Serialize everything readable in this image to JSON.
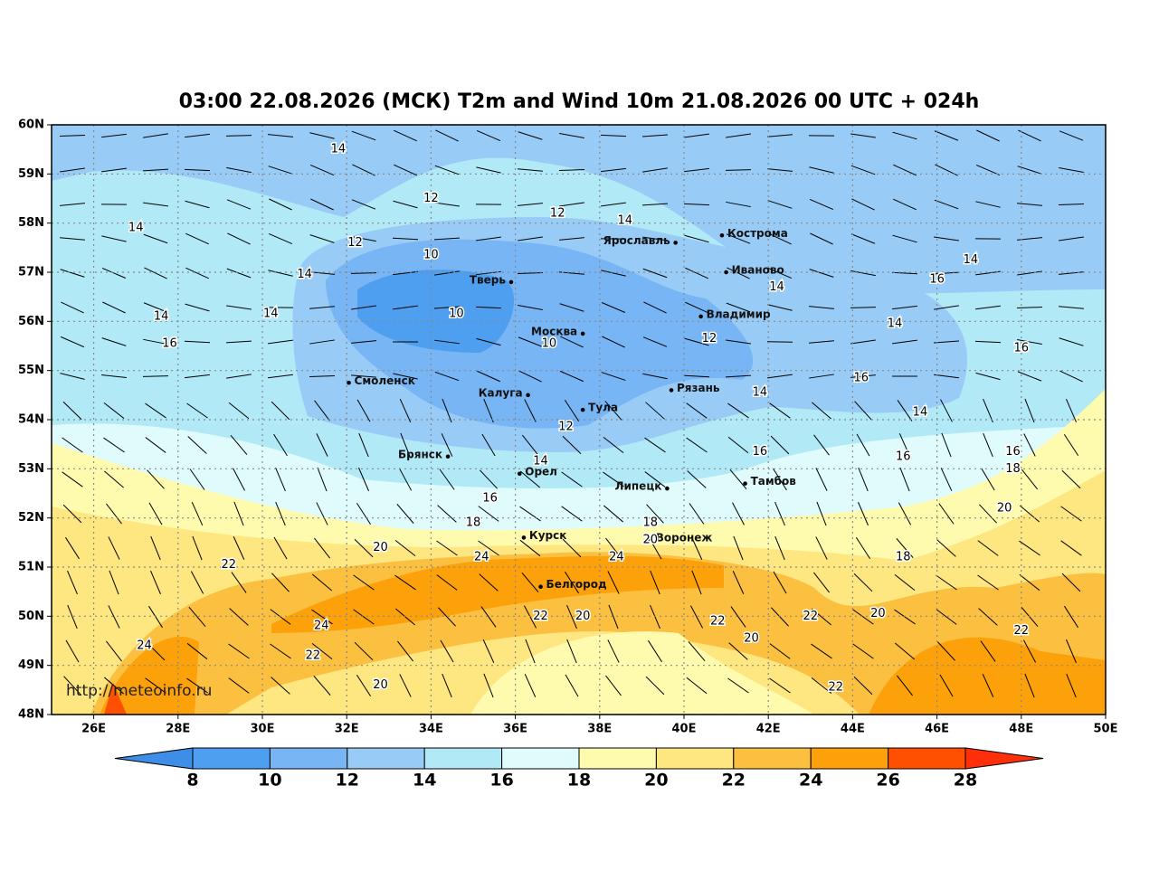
{
  "map": {
    "title": "03:00 22.08.2026 (МСК) T2m and Wind 10m 21.08.2026 00 UTC + 024h",
    "watermark": "http://meteoinfo.ru",
    "xlim": [
      25,
      50
    ],
    "ylim": [
      48,
      60
    ],
    "xticks": [
      {
        "value": 26,
        "label": "26E"
      },
      {
        "value": 28,
        "label": "28E"
      },
      {
        "value": 30,
        "label": "30E"
      },
      {
        "value": 32,
        "label": "32E"
      },
      {
        "value": 34,
        "label": "34E"
      },
      {
        "value": 36,
        "label": "36E"
      },
      {
        "value": 38,
        "label": "38E"
      },
      {
        "value": 40,
        "label": "40E"
      },
      {
        "value": 42,
        "label": "42E"
      },
      {
        "value": 44,
        "label": "44E"
      },
      {
        "value": 46,
        "label": "46E"
      },
      {
        "value": 48,
        "label": "48E"
      },
      {
        "value": 50,
        "label": "50E"
      }
    ],
    "yticks": [
      {
        "value": 48,
        "label": "48N"
      },
      {
        "value": 49,
        "label": "49N"
      },
      {
        "value": 50,
        "label": "50N"
      },
      {
        "value": 51,
        "label": "51N"
      },
      {
        "value": 52,
        "label": "52N"
      },
      {
        "value": 53,
        "label": "53N"
      },
      {
        "value": 54,
        "label": "54N"
      },
      {
        "value": 55,
        "label": "55N"
      },
      {
        "value": 56,
        "label": "56N"
      },
      {
        "value": 57,
        "label": "57N"
      },
      {
        "value": 58,
        "label": "58N"
      },
      {
        "value": 59,
        "label": "59N"
      },
      {
        "value": 60,
        "label": "60N"
      }
    ],
    "grid": true,
    "cities": [
      {
        "name": "Кострома",
        "lon": 40.9,
        "lat": 57.75
      },
      {
        "name": "Ярославль",
        "lon": 39.8,
        "lat": 57.6
      },
      {
        "name": "Иваново",
        "lon": 41.0,
        "lat": 57.0
      },
      {
        "name": "Тверь",
        "lon": 35.9,
        "lat": 56.8
      },
      {
        "name": "Владимир",
        "lon": 40.4,
        "lat": 56.1
      },
      {
        "name": "Москва",
        "lon": 37.6,
        "lat": 55.75
      },
      {
        "name": "Смоленск",
        "lon": 32.05,
        "lat": 54.75
      },
      {
        "name": "Рязань",
        "lon": 39.7,
        "lat": 54.6
      },
      {
        "name": "Калуга",
        "lon": 36.3,
        "lat": 54.5
      },
      {
        "name": "Тула",
        "lon": 37.6,
        "lat": 54.2
      },
      {
        "name": "Брянск",
        "lon": 34.4,
        "lat": 53.25
      },
      {
        "name": "Орел",
        "lon": 36.1,
        "lat": 52.9
      },
      {
        "name": "Липецк",
        "lon": 39.6,
        "lat": 52.6
      },
      {
        "name": "Тамбов",
        "lon": 41.45,
        "lat": 52.7
      },
      {
        "name": "Курск",
        "lon": 36.2,
        "lat": 51.6
      },
      {
        "name": "Воронеж",
        "lon": 39.2,
        "lat": 51.55
      },
      {
        "name": "Белгород",
        "lon": 36.6,
        "lat": 50.6
      }
    ],
    "contour_labels": [
      {
        "value": 14,
        "lon": 31.8,
        "lat": 59.5
      },
      {
        "value": 12,
        "lon": 34.0,
        "lat": 58.5
      },
      {
        "value": 12,
        "lon": 37.0,
        "lat": 58.2
      },
      {
        "value": 14,
        "lon": 38.6,
        "lat": 58.05
      },
      {
        "value": 14,
        "lon": 27.0,
        "lat": 57.9
      },
      {
        "value": 12,
        "lon": 32.2,
        "lat": 57.6
      },
      {
        "value": 10,
        "lon": 34.0,
        "lat": 57.35
      },
      {
        "value": 14,
        "lon": 31.0,
        "lat": 56.95
      },
      {
        "value": 14,
        "lon": 46.8,
        "lat": 57.25
      },
      {
        "value": 16,
        "lon": 46.0,
        "lat": 56.85
      },
      {
        "value": 14,
        "lon": 42.2,
        "lat": 56.7
      },
      {
        "value": 14,
        "lon": 27.6,
        "lat": 56.1
      },
      {
        "value": 14,
        "lon": 30.2,
        "lat": 56.15
      },
      {
        "value": 10,
        "lon": 34.6,
        "lat": 56.15
      },
      {
        "value": 16,
        "lon": 27.8,
        "lat": 55.55
      },
      {
        "value": 10,
        "lon": 36.8,
        "lat": 55.55
      },
      {
        "value": 12,
        "lon": 40.6,
        "lat": 55.65
      },
      {
        "value": 14,
        "lon": 45.0,
        "lat": 55.95
      },
      {
        "value": 16,
        "lon": 48.0,
        "lat": 55.45
      },
      {
        "value": 16,
        "lon": 44.2,
        "lat": 54.85
      },
      {
        "value": 14,
        "lon": 41.8,
        "lat": 54.55
      },
      {
        "value": 12,
        "lon": 37.2,
        "lat": 53.85
      },
      {
        "value": 14,
        "lon": 45.6,
        "lat": 54.15
      },
      {
        "value": 16,
        "lon": 41.8,
        "lat": 53.35
      },
      {
        "value": 14,
        "lon": 36.6,
        "lat": 53.15
      },
      {
        "value": 16,
        "lon": 45.2,
        "lat": 53.25
      },
      {
        "value": 16,
        "lon": 47.8,
        "lat": 53.35
      },
      {
        "value": 18,
        "lon": 47.8,
        "lat": 53.0
      },
      {
        "value": 16,
        "lon": 35.4,
        "lat": 52.4
      },
      {
        "value": 18,
        "lon": 35.0,
        "lat": 51.9
      },
      {
        "value": 18,
        "lon": 39.2,
        "lat": 51.9
      },
      {
        "value": 20,
        "lon": 47.6,
        "lat": 52.2
      },
      {
        "value": 20,
        "lon": 32.8,
        "lat": 51.4
      },
      {
        "value": 22,
        "lon": 29.2,
        "lat": 51.05
      },
      {
        "value": 24,
        "lon": 35.2,
        "lat": 51.2
      },
      {
        "value": 24,
        "lon": 38.4,
        "lat": 51.2
      },
      {
        "value": 20,
        "lon": 39.2,
        "lat": 51.55
      },
      {
        "value": 18,
        "lon": 45.2,
        "lat": 51.2
      },
      {
        "value": 22,
        "lon": 36.6,
        "lat": 50.0
      },
      {
        "value": 20,
        "lon": 37.6,
        "lat": 50.0
      },
      {
        "value": 24,
        "lon": 31.4,
        "lat": 49.8
      },
      {
        "value": 22,
        "lon": 40.8,
        "lat": 49.9
      },
      {
        "value": 22,
        "lon": 43.0,
        "lat": 50.0
      },
      {
        "value": 20,
        "lon": 44.6,
        "lat": 50.05
      },
      {
        "value": 22,
        "lon": 48.0,
        "lat": 49.7
      },
      {
        "value": 20,
        "lon": 41.6,
        "lat": 49.55
      },
      {
        "value": 24,
        "lon": 27.2,
        "lat": 49.4
      },
      {
        "value": 22,
        "lon": 31.2,
        "lat": 49.2
      },
      {
        "value": 20,
        "lon": 32.8,
        "lat": 48.6
      },
      {
        "value": 22,
        "lon": 43.6,
        "lat": 48.55
      }
    ],
    "colorbar": {
      "levels": [
        8,
        10,
        12,
        14,
        16,
        18,
        20,
        22,
        24,
        26,
        28
      ],
      "colors": [
        "#4f9ff0",
        "#77b5f5",
        "#98ccf7",
        "#b2e9f7",
        "#e0fbfc",
        "#fffbae",
        "#fee680",
        "#fbc040",
        "#fca10a",
        "#fe5000"
      ],
      "under_color": "#3e8ee8",
      "over_color": "#fe2f0a"
    }
  }
}
